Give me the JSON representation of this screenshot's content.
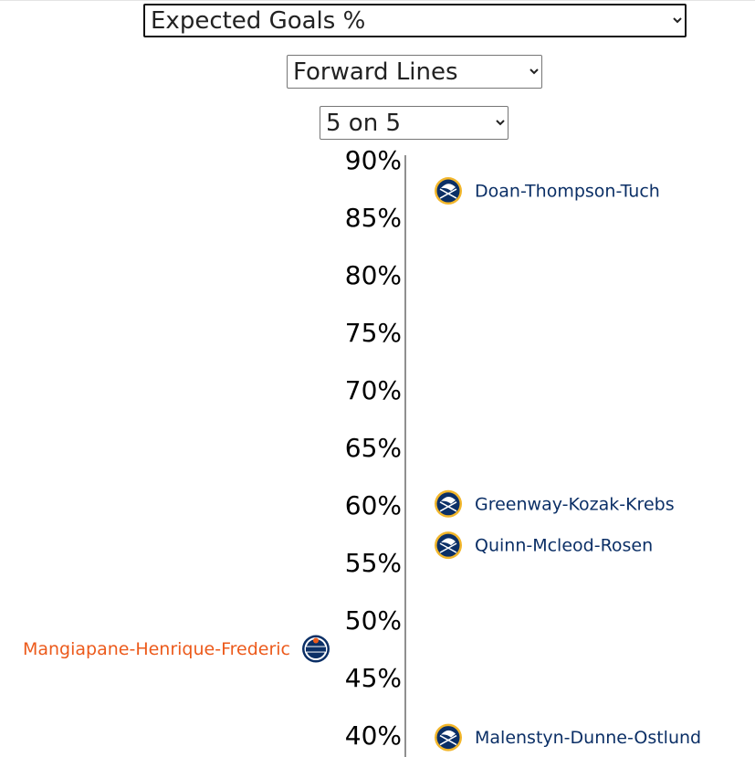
{
  "controls": {
    "metric": "Expected Goals %",
    "unit": "Forward Lines",
    "strength": "5 on 5"
  },
  "chart_data": {
    "type": "strip",
    "ylim": [
      38.1,
      90.4
    ],
    "yticks": [
      {
        "value": 90,
        "label": "90%"
      },
      {
        "value": 85,
        "label": "85%"
      },
      {
        "value": 80,
        "label": "80%"
      },
      {
        "value": 75,
        "label": "75%"
      },
      {
        "value": 70,
        "label": "70%"
      },
      {
        "value": 65,
        "label": "65%"
      },
      {
        "value": 60,
        "label": "60%"
      },
      {
        "value": 55,
        "label": "55%"
      },
      {
        "value": 50,
        "label": "50%"
      },
      {
        "value": 45,
        "label": "45%"
      },
      {
        "value": 40,
        "label": "40%"
      }
    ],
    "series": [
      {
        "color": "#0b2f66",
        "labels": [
          "Doan-Thompson-Tuch",
          "Greenway-Kozak-Krebs",
          "Quinn-Mcleod-Rosen",
          "Malenstyn-Dunne-Ostlund"
        ],
        "values": [
          87.3,
          60.1,
          56.5,
          39.8
        ]
      },
      {
        "color": "#ec5a1b",
        "labels": [
          "Mangiapane-Henrique-Frederic"
        ],
        "values": [
          47.5
        ]
      }
    ]
  }
}
